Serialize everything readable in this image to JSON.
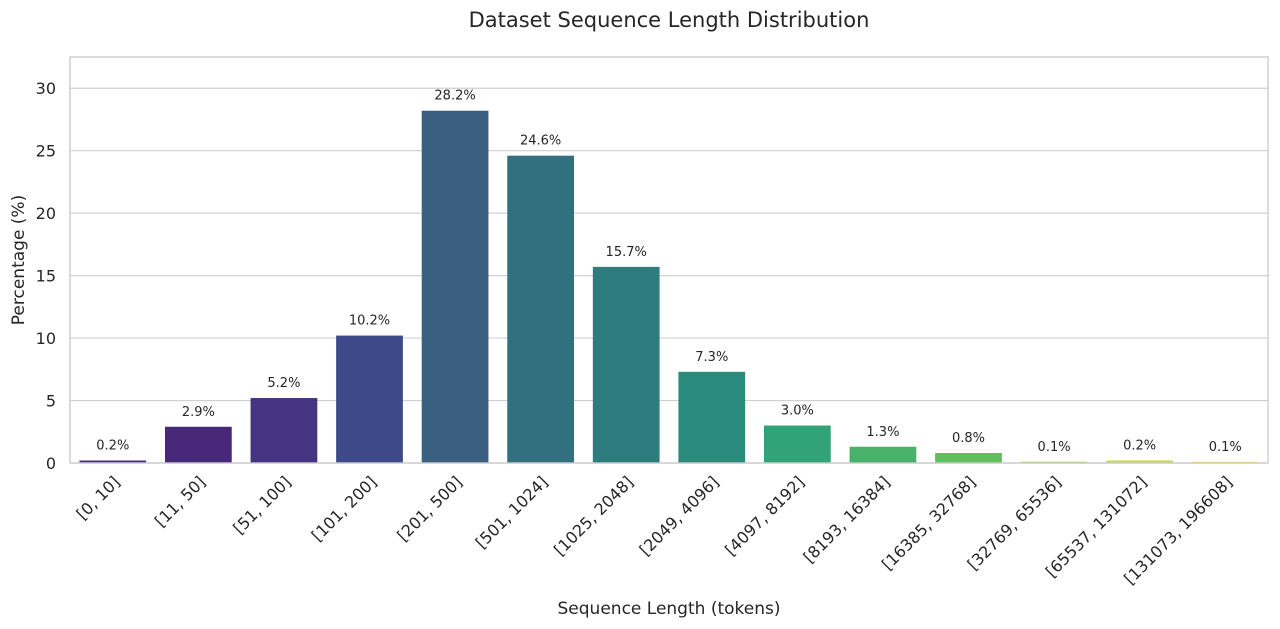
{
  "chart_data": {
    "type": "bar",
    "title": "Dataset Sequence Length Distribution",
    "xlabel": "Sequence Length (tokens)",
    "ylabel": "Percentage (%)",
    "ylim": [
      0,
      32.5
    ],
    "yticks": [
      0,
      5,
      10,
      15,
      20,
      25,
      30
    ],
    "grid": true,
    "categories": [
      "[0, 10]",
      "[11, 50]",
      "[51, 100]",
      "[101, 200]",
      "[201, 500]",
      "[501, 1024]",
      "[1025, 2048]",
      "[2049, 4096]",
      "[4097, 8192]",
      "[8193, 16384]",
      "[16385, 32768]",
      "[32769, 65536]",
      "[65537, 131072]",
      "[131073, 196608]"
    ],
    "values": [
      0.2,
      2.9,
      5.2,
      10.2,
      28.2,
      24.6,
      15.7,
      7.3,
      3.0,
      1.3,
      0.8,
      0.1,
      0.2,
      0.1
    ],
    "data_labels": [
      "0.2%",
      "2.9%",
      "5.2%",
      "10.2%",
      "28.2%",
      "24.6%",
      "15.7%",
      "7.3%",
      "3.0%",
      "1.3%",
      "0.8%",
      "0.1%",
      "0.2%",
      "0.1%"
    ],
    "colors": [
      "#46327e",
      "#482878",
      "#463480",
      "#3e4989",
      "#3b5f80",
      "#33707f",
      "#2e7c7e",
      "#2a8b7c",
      "#31a27a",
      "#48b26b",
      "#62bd5f",
      "#9ed044",
      "#c7dc3a",
      "#fde725"
    ]
  }
}
